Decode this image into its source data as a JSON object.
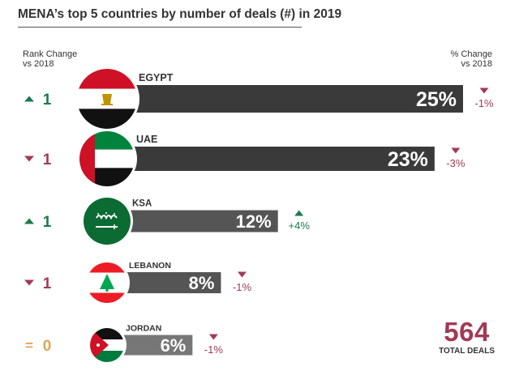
{
  "title": "MENA’s top 5 countries by number of deals (#) in 2019",
  "header_left": [
    "Rank Change",
    "vs 2018"
  ],
  "header_right": [
    "% Change",
    "vs 2018"
  ],
  "total": {
    "value": "564",
    "label": "TOTAL DEALS"
  },
  "colors": {
    "up": "#1c7a4e",
    "down": "#a23a55",
    "neutral": "#e0a45a",
    "bar_dark": "#3a3a3a",
    "bar_mid": "#555555",
    "bar_light": "#777777"
  },
  "chart_data": {
    "type": "bar",
    "categories": [
      "EGYPT",
      "UAE",
      "KSA",
      "LEBANON",
      "JORDAN"
    ],
    "values": [
      25,
      23,
      12,
      8,
      6
    ],
    "value_labels": [
      "25%",
      "23%",
      "12%",
      "8%",
      "6%"
    ],
    "unit": "%",
    "rank_change": [
      {
        "dir": "up",
        "value": "1"
      },
      {
        "dir": "down",
        "value": "1"
      },
      {
        "dir": "up",
        "value": "1"
      },
      {
        "dir": "down",
        "value": "1"
      },
      {
        "dir": "equal",
        "value": "0"
      }
    ],
    "pct_change": [
      {
        "dir": "down",
        "label": "-1%"
      },
      {
        "dir": "down",
        "label": "-3%"
      },
      {
        "dir": "up",
        "label": "+4%"
      },
      {
        "dir": "down",
        "label": "-1%"
      },
      {
        "dir": "down",
        "label": "-1%"
      }
    ],
    "flags": [
      "egypt-flag",
      "uae-flag",
      "ksa-flag",
      "lebanon-flag",
      "jordan-flag"
    ]
  }
}
